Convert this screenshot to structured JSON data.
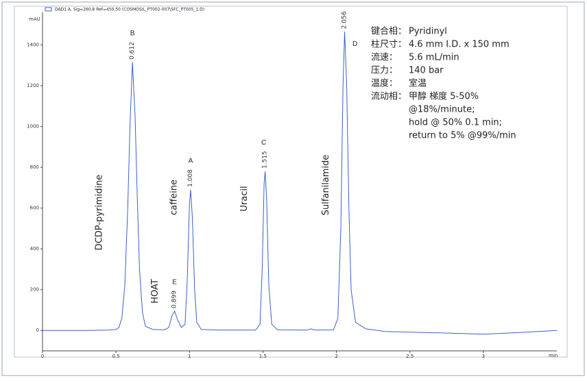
{
  "chart_data": {
    "type": "line",
    "legend": "DAD1 A, Sig=260,8 Ref=450,50 (COSMOSIL_PT002-007\\SFC_PT005_1.D)",
    "y_unit": "mAU",
    "x_unit": "min",
    "xlim": [
      0,
      3.5
    ],
    "ylim": [
      -100,
      1560
    ],
    "xticks": [
      0,
      0.5,
      1,
      1.5,
      2,
      2.5,
      3
    ],
    "yticks": [
      0,
      200,
      400,
      600,
      800,
      1000,
      1200,
      1400
    ],
    "series": [
      {
        "color": "#3a5fcd",
        "x": [
          0,
          0.3,
          0.45,
          0.5,
          0.52,
          0.54,
          0.56,
          0.58,
          0.595,
          0.612,
          0.63,
          0.645,
          0.66,
          0.68,
          0.7,
          0.75,
          0.83,
          0.86,
          0.88,
          0.899,
          0.92,
          0.945,
          0.97,
          0.985,
          1.0,
          1.008,
          1.02,
          1.035,
          1.05,
          1.08,
          1.2,
          1.45,
          1.48,
          1.495,
          1.508,
          1.515,
          1.525,
          1.54,
          1.56,
          1.6,
          1.8,
          1.83,
          1.85,
          1.98,
          2.01,
          2.03,
          2.045,
          2.056,
          2.07,
          2.085,
          2.1,
          2.13,
          2.2,
          2.33,
          2.6,
          3.0,
          3.2,
          3.45,
          3.5
        ],
        "values": [
          0,
          0,
          2,
          5,
          15,
          60,
          220,
          600,
          1000,
          1315,
          1050,
          650,
          300,
          90,
          20,
          5,
          3,
          15,
          70,
          95,
          50,
          15,
          30,
          250,
          620,
          690,
          550,
          200,
          40,
          5,
          2,
          2,
          30,
          300,
          720,
          780,
          650,
          220,
          30,
          3,
          2,
          8,
          2,
          3,
          60,
          500,
          1200,
          1465,
          1200,
          600,
          200,
          40,
          8,
          -5,
          -10,
          -18,
          -12,
          -2,
          0
        ]
      }
    ],
    "peaks": [
      {
        "letter": "B",
        "time": 0.612,
        "compound": "DCDP-pyrimidine"
      },
      {
        "letter": "E",
        "time": 0.899,
        "compound": "HOAT"
      },
      {
        "letter": "A",
        "time": 1.008,
        "compound": "caffeine"
      },
      {
        "letter": "C",
        "time": 1.515,
        "compound": "Uracil"
      },
      {
        "letter": "D",
        "time": 2.056,
        "compound": "Sulfanilamide"
      }
    ],
    "conditions": [
      {
        "label": "键合相：",
        "lines": [
          "Pyridinyl"
        ]
      },
      {
        "label": "柱尺寸：",
        "lines": [
          "4.6 mm I.D. x 150 mm"
        ]
      },
      {
        "label": "流速：",
        "lines": [
          "5.6 mL/min"
        ]
      },
      {
        "label": "压力：",
        "lines": [
          "140 bar"
        ]
      },
      {
        "label": "温度：",
        "lines": [
          "室温"
        ]
      },
      {
        "label": "流动相：",
        "lines": [
          "甲醇 梯度 5-50%",
          "@18%/minute;",
          "hold @ 50% 0.1 min;",
          "return to 5% @99%/min"
        ]
      }
    ]
  }
}
